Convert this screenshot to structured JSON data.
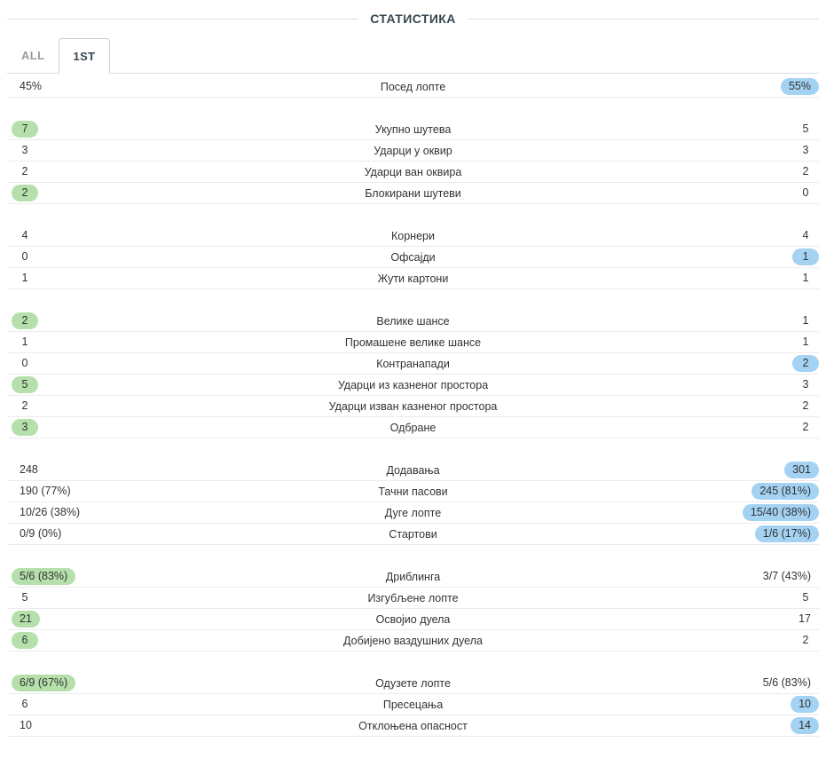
{
  "title": "СТАТИСТИКА",
  "tabs": [
    {
      "label": "ALL",
      "active": false
    },
    {
      "label": "1ST",
      "active": true
    }
  ],
  "colors": {
    "home_highlight": "#b5e0ac",
    "away_highlight": "#a3d2f2",
    "row_border": "#ebebeb"
  },
  "stats_groups": [
    {
      "rows": [
        {
          "home": "45%",
          "label": "Посед лопте",
          "away": "55%",
          "highlight": "away"
        }
      ]
    },
    {
      "rows": [
        {
          "home": "7",
          "label": "Укупно шутева",
          "away": "5",
          "highlight": "home"
        },
        {
          "home": "3",
          "label": "Ударци у оквир",
          "away": "3",
          "highlight": "none"
        },
        {
          "home": "2",
          "label": "Ударци ван оквира",
          "away": "2",
          "highlight": "none"
        },
        {
          "home": "2",
          "label": "Блокирани шутеви",
          "away": "0",
          "highlight": "home"
        }
      ]
    },
    {
      "rows": [
        {
          "home": "4",
          "label": "Корнери",
          "away": "4",
          "highlight": "none"
        },
        {
          "home": "0",
          "label": "Офсајди",
          "away": "1",
          "highlight": "away"
        },
        {
          "home": "1",
          "label": "Жути картони",
          "away": "1",
          "highlight": "none"
        }
      ]
    },
    {
      "rows": [
        {
          "home": "2",
          "label": "Велике шансе",
          "away": "1",
          "highlight": "home"
        },
        {
          "home": "1",
          "label": "Промашене велике шансе",
          "away": "1",
          "highlight": "none"
        },
        {
          "home": "0",
          "label": "Контранапади",
          "away": "2",
          "highlight": "away"
        },
        {
          "home": "5",
          "label": "Ударци из казненог простора",
          "away": "3",
          "highlight": "home"
        },
        {
          "home": "2",
          "label": "Ударци изван казненог простора",
          "away": "2",
          "highlight": "none"
        },
        {
          "home": "3",
          "label": "Одбране",
          "away": "2",
          "highlight": "home"
        }
      ]
    },
    {
      "rows": [
        {
          "home": "248",
          "label": "Додавања",
          "away": "301",
          "highlight": "away"
        },
        {
          "home": "190 (77%)",
          "label": "Тачни пасови",
          "away": "245 (81%)",
          "highlight": "away"
        },
        {
          "home": "10/26 (38%)",
          "label": "Дуге лопте",
          "away": "15/40 (38%)",
          "highlight": "away"
        },
        {
          "home": "0/9 (0%)",
          "label": "Стартови",
          "away": "1/6 (17%)",
          "highlight": "away"
        }
      ]
    },
    {
      "rows": [
        {
          "home": "5/6 (83%)",
          "label": "Дриблинга",
          "away": "3/7 (43%)",
          "highlight": "home"
        },
        {
          "home": "5",
          "label": "Изгубљене лопте",
          "away": "5",
          "highlight": "none"
        },
        {
          "home": "21",
          "label": "Освојио дуела",
          "away": "17",
          "highlight": "home"
        },
        {
          "home": "6",
          "label": "Добијено ваздушних дуела",
          "away": "2",
          "highlight": "home"
        }
      ]
    },
    {
      "rows": [
        {
          "home": "6/9 (67%)",
          "label": "Одузете лопте",
          "away": "5/6 (83%)",
          "highlight": "home"
        },
        {
          "home": "6",
          "label": "Пресецања",
          "away": "10",
          "highlight": "away"
        },
        {
          "home": "10",
          "label": "Отклоњена опасност",
          "away": "14",
          "highlight": "away"
        }
      ]
    }
  ]
}
